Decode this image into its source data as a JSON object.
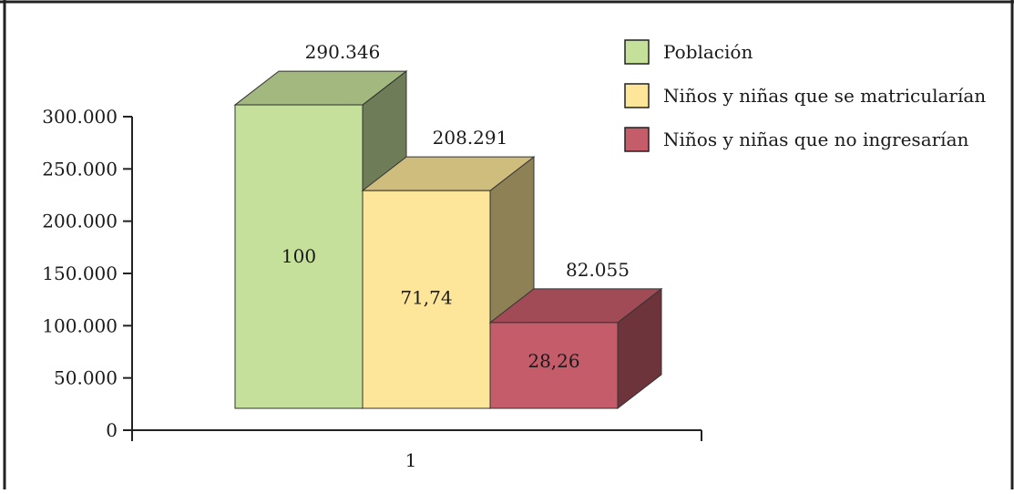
{
  "chart_data": {
    "type": "bar",
    "categories": [
      "1"
    ],
    "series": [
      {
        "name": "Población",
        "value": 290346,
        "value_label": "290.346",
        "inner_label": "100",
        "color": "#c5e09b"
      },
      {
        "name": "Niños y niñas que se matricularían",
        "value": 208291,
        "value_label": "208.291",
        "inner_label": "71,74",
        "color": "#fde69a"
      },
      {
        "name": "Niños y niñas que no ingresarían",
        "value": 82055,
        "value_label": "82.055",
        "inner_label": "28,26",
        "color": "#c45c6a"
      }
    ],
    "y_ticks": [
      {
        "value": 0,
        "label": "0"
      },
      {
        "value": 50000,
        "label": "50.000"
      },
      {
        "value": 100000,
        "label": "100.000"
      },
      {
        "value": 150000,
        "label": "150.000"
      },
      {
        "value": 200000,
        "label": "200.000"
      },
      {
        "value": 250000,
        "label": "250.000"
      },
      {
        "value": 300000,
        "label": "300.000"
      }
    ],
    "ylim": [
      0,
      300000
    ],
    "three_d": true,
    "grid": false,
    "legend_position": "top-right"
  }
}
